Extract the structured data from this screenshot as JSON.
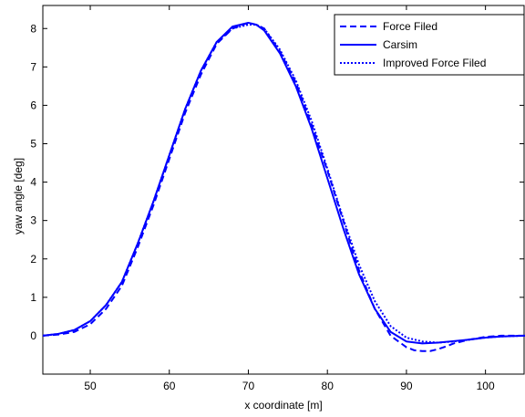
{
  "chart_data": {
    "type": "line",
    "title": "",
    "xlabel": "x coordinate [m]",
    "ylabel": "yaw angle [deg]",
    "xlim": [
      44,
      105
    ],
    "ylim": [
      -1,
      8.6
    ],
    "xticks": [
      50,
      60,
      70,
      80,
      90,
      100
    ],
    "yticks": [
      0,
      1,
      2,
      3,
      4,
      5,
      6,
      7,
      8
    ],
    "grid": false,
    "legend": "top-right",
    "series": [
      {
        "name": "Force Filed",
        "style": "dashed",
        "color": "#0000ff",
        "x": [
          44,
          46,
          48,
          50,
          52,
          54,
          56,
          58,
          60,
          62,
          64,
          66,
          68,
          70,
          71,
          72,
          74,
          76,
          78,
          80,
          82,
          84,
          86,
          88,
          90,
          91,
          92,
          93,
          94,
          95,
          96,
          98,
          100,
          102,
          105
        ],
        "y": [
          0,
          0.03,
          0.1,
          0.3,
          0.7,
          1.3,
          2.3,
          3.4,
          4.6,
          5.8,
          6.8,
          7.6,
          8.0,
          8.15,
          8.1,
          8.0,
          7.4,
          6.6,
          5.5,
          4.3,
          3.0,
          1.7,
          0.7,
          0.0,
          -0.3,
          -0.38,
          -0.4,
          -0.4,
          -0.35,
          -0.28,
          -0.2,
          -0.1,
          -0.03,
          0.0,
          0.0
        ]
      },
      {
        "name": "Carsim",
        "style": "solid",
        "color": "#0000ff",
        "x": [
          44,
          46,
          48,
          50,
          52,
          54,
          56,
          58,
          60,
          62,
          64,
          66,
          68,
          70,
          71,
          72,
          74,
          76,
          78,
          80,
          82,
          84,
          86,
          88,
          90,
          92,
          94,
          96,
          98,
          100,
          102,
          105
        ],
        "y": [
          0,
          0.05,
          0.15,
          0.38,
          0.8,
          1.4,
          2.4,
          3.5,
          4.7,
          5.9,
          6.9,
          7.65,
          8.05,
          8.15,
          8.1,
          7.95,
          7.35,
          6.5,
          5.4,
          4.1,
          2.8,
          1.6,
          0.7,
          0.1,
          -0.15,
          -0.2,
          -0.18,
          -0.14,
          -0.1,
          -0.05,
          -0.02,
          0.0
        ]
      },
      {
        "name": "Improved Force Filed",
        "style": "dotted",
        "color": "#0000ff",
        "x": [
          44,
          46,
          48,
          50,
          52,
          54,
          56,
          58,
          60,
          62,
          64,
          66,
          68,
          70,
          71,
          72,
          74,
          76,
          78,
          80,
          82,
          84,
          86,
          88,
          90,
          92,
          94,
          96,
          98,
          100,
          102,
          105
        ],
        "y": [
          0,
          0.05,
          0.15,
          0.38,
          0.8,
          1.4,
          2.4,
          3.5,
          4.7,
          5.9,
          6.9,
          7.65,
          8.0,
          8.1,
          8.1,
          8.0,
          7.45,
          6.65,
          5.6,
          4.35,
          3.05,
          1.85,
          0.9,
          0.25,
          -0.05,
          -0.15,
          -0.18,
          -0.15,
          -0.1,
          -0.05,
          -0.02,
          0.0
        ]
      }
    ]
  }
}
